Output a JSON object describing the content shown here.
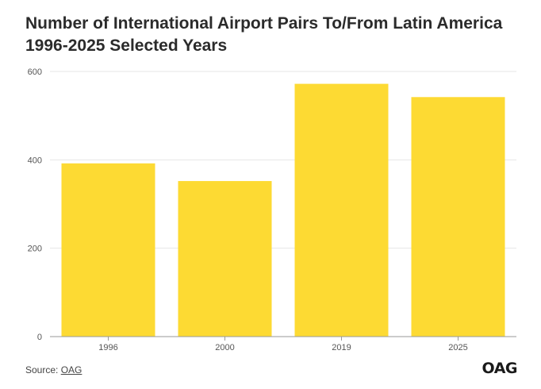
{
  "title": "Number of International Airport Pairs To/From Latin America 1996-2025 Selected Years",
  "source_prefix": "Source: ",
  "source_link": "OAG",
  "logo_text": "OAG",
  "colors": {
    "bar": "#FDDA33",
    "grid": "#e6e6e6",
    "axis": "#9a9a9a"
  },
  "chart_data": {
    "type": "bar",
    "title": "Number of International Airport Pairs To/From Latin America 1996-2025 Selected Years",
    "categories": [
      "1996",
      "2000",
      "2019",
      "2025"
    ],
    "values": [
      392,
      352,
      572,
      542
    ],
    "xlabel": "",
    "ylabel": "",
    "ylim": [
      0,
      600
    ],
    "yticks": [
      "0",
      "200",
      "400",
      "600"
    ],
    "grid": true,
    "legend": "none"
  }
}
